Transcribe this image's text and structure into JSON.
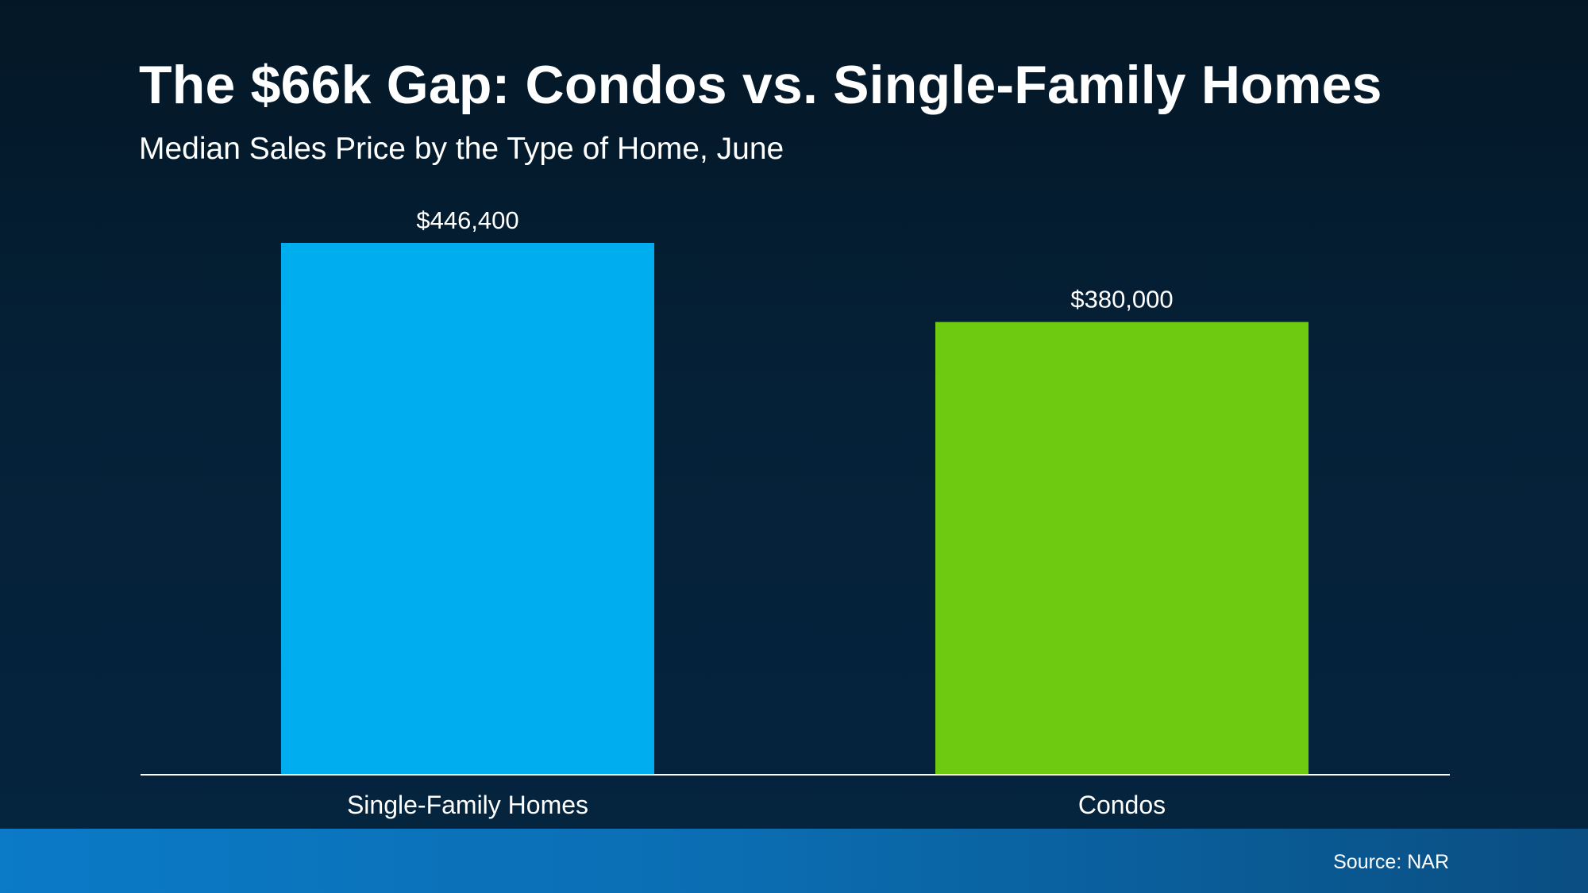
{
  "header": {
    "title": "The $66k Gap: Condos vs. Single-Family Homes",
    "subtitle": "Median Sales Price by the Type of Home, June"
  },
  "footer": {
    "source": "Source: NAR"
  },
  "chart_data": {
    "type": "bar",
    "title": "The $66k Gap: Condos vs. Single-Family Homes",
    "subtitle": "Median Sales Price by the Type of Home, June",
    "categories": [
      "Single-Family Homes",
      "Condos"
    ],
    "values": [
      446400,
      380000
    ],
    "data_labels": [
      "$446,400",
      "$380,000"
    ],
    "colors": [
      "#00aeef",
      "#6ec911"
    ],
    "xlabel": "",
    "ylabel": "",
    "ylim": [
      0,
      446400
    ],
    "grid": false,
    "legend": "none"
  }
}
